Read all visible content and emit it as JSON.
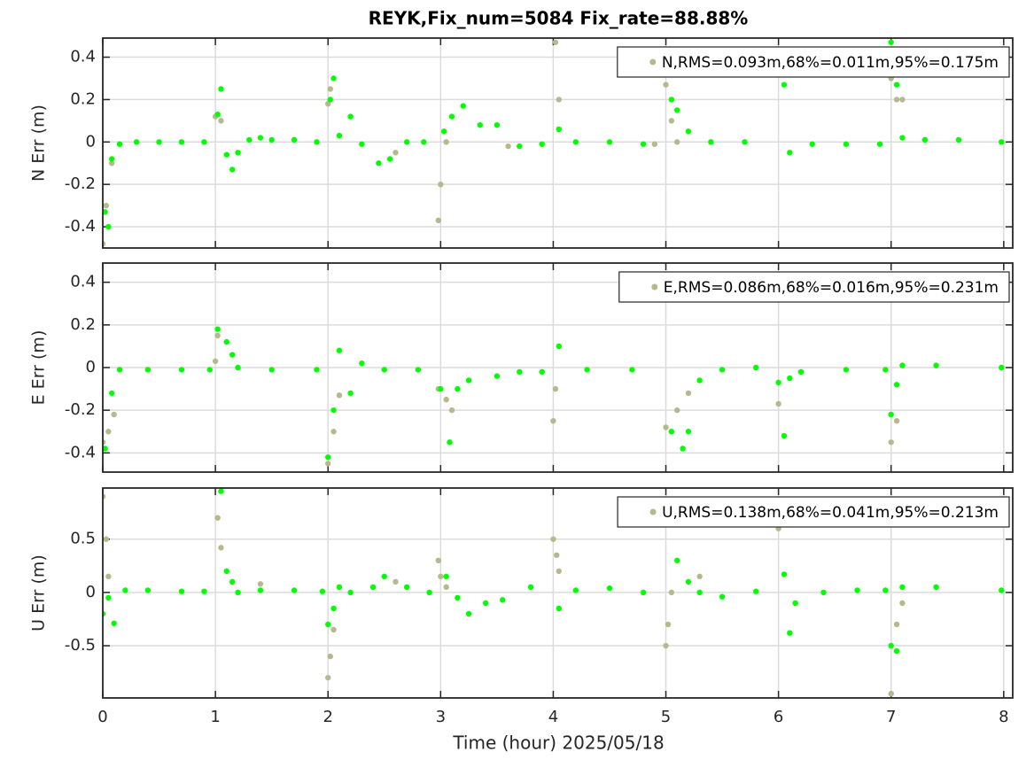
{
  "chart_data": [
    {
      "type": "scatter",
      "title": "REYK,Fix_num=5084 Fix_rate=88.88%",
      "ylabel": "N Err (m)",
      "xlim": [
        0,
        8.08
      ],
      "xticks": [
        0,
        1,
        2,
        3,
        4,
        5,
        6,
        7,
        8
      ],
      "ylim": [
        -0.5,
        0.49
      ],
      "yticks": [
        -0.4,
        -0.2,
        0,
        0.2,
        0.4
      ],
      "grid": true,
      "legend": "upper right",
      "series": [
        {
          "name": "N,RMS=0.093m,68%=0.011m,95%=0.175m",
          "color": "#b8b88e",
          "x": [
            0.0,
            0.03,
            0.08,
            1.0,
            1.05,
            2.0,
            2.02,
            2.6,
            2.98,
            3.0,
            3.05,
            3.6,
            4.02,
            4.05,
            4.9,
            5.0,
            5.05,
            5.1,
            7.0,
            7.05,
            7.1
          ],
          "values": [
            -0.48,
            -0.3,
            -0.1,
            0.12,
            0.1,
            0.18,
            0.25,
            -0.05,
            -0.37,
            -0.2,
            0,
            -0.02,
            0.47,
            0.2,
            -0.01,
            0.27,
            0.1,
            0,
            0.3,
            0.2,
            0.2
          ]
        },
        {
          "color": "#00ff00",
          "x": [
            0.02,
            0.05,
            0.08,
            0.15,
            0.3,
            0.5,
            0.7,
            0.9,
            1.02,
            1.05,
            1.1,
            1.15,
            1.2,
            1.3,
            1.4,
            1.5,
            1.7,
            1.9,
            2.02,
            2.05,
            2.1,
            2.2,
            2.3,
            2.45,
            2.55,
            2.7,
            2.85,
            3.03,
            3.1,
            3.2,
            3.35,
            3.5,
            3.7,
            3.9,
            4.05,
            4.2,
            4.5,
            4.8,
            5.05,
            5.1,
            5.2,
            5.4,
            5.7,
            6.05,
            6.1,
            6.3,
            6.6,
            6.9,
            7.0,
            7.05,
            7.1,
            7.3,
            7.6,
            7.98
          ],
          "values": [
            -0.33,
            -0.4,
            -0.08,
            -0.01,
            0,
            0,
            0,
            0,
            0.13,
            0.25,
            -0.06,
            -0.13,
            -0.05,
            0.01,
            0.02,
            0.01,
            0.01,
            0,
            0.2,
            0.3,
            0.03,
            0.12,
            -0.01,
            -0.1,
            -0.08,
            0,
            0,
            0.05,
            0.12,
            0.17,
            0.08,
            0.08,
            -0.02,
            -0.01,
            0.06,
            0,
            0,
            -0.01,
            0.2,
            0.15,
            0.05,
            0,
            0,
            0.27,
            -0.05,
            -0.01,
            -0.01,
            -0.01,
            0.47,
            0.27,
            0.02,
            0.01,
            0.01,
            0
          ]
        }
      ]
    },
    {
      "type": "scatter",
      "ylabel": "E Err (m)",
      "xlim": [
        0,
        8.08
      ],
      "xticks": [
        0,
        1,
        2,
        3,
        4,
        5,
        6,
        7,
        8
      ],
      "ylim": [
        -0.49,
        0.49
      ],
      "yticks": [
        -0.4,
        -0.2,
        0,
        0.2,
        0.4
      ],
      "grid": true,
      "legend": "upper right",
      "series": [
        {
          "name": "E,RMS=0.086m,68%=0.016m,95%=0.231m",
          "color": "#b8b88e",
          "x": [
            0.0,
            0.05,
            0.1,
            1.0,
            1.02,
            2.0,
            2.05,
            2.1,
            2.98,
            3.05,
            3.1,
            4.0,
            4.02,
            5.0,
            5.1,
            5.2,
            6.0,
            7.0,
            7.05
          ],
          "values": [
            -0.35,
            -0.3,
            -0.22,
            0.03,
            0.15,
            -0.45,
            -0.3,
            -0.13,
            -0.1,
            -0.15,
            -0.2,
            -0.25,
            -0.1,
            -0.28,
            -0.2,
            -0.12,
            -0.17,
            -0.35,
            -0.25
          ]
        },
        {
          "color": "#00ff00",
          "x": [
            0.02,
            0.08,
            0.15,
            0.4,
            0.7,
            0.95,
            1.02,
            1.1,
            1.15,
            1.2,
            1.5,
            1.9,
            2.0,
            2.05,
            2.1,
            2.2,
            2.3,
            2.5,
            2.8,
            3.0,
            3.08,
            3.15,
            3.25,
            3.5,
            3.7,
            3.9,
            4.05,
            4.3,
            4.7,
            5.05,
            5.15,
            5.2,
            5.3,
            5.5,
            5.8,
            6.0,
            6.05,
            6.1,
            6.2,
            6.6,
            6.95,
            7.0,
            7.05,
            7.1,
            7.4,
            7.98
          ],
          "values": [
            -0.38,
            -0.12,
            -0.01,
            -0.01,
            -0.01,
            -0.01,
            0.18,
            0.12,
            0.06,
            0,
            -0.01,
            -0.01,
            -0.42,
            -0.2,
            0.08,
            -0.12,
            0.02,
            -0.01,
            -0.01,
            -0.1,
            -0.35,
            -0.1,
            -0.06,
            -0.04,
            -0.02,
            -0.02,
            0.1,
            -0.01,
            -0.01,
            -0.3,
            -0.38,
            -0.3,
            -0.06,
            -0.01,
            0,
            -0.07,
            -0.32,
            -0.05,
            -0.02,
            -0.01,
            -0.01,
            -0.22,
            -0.08,
            0.01,
            0.01,
            0
          ]
        }
      ]
    },
    {
      "type": "scatter",
      "ylabel": "U Err (m)",
      "xlabel": "Time (hour)  2025/05/18",
      "xlim": [
        0,
        8.08
      ],
      "xticks": [
        0,
        1,
        2,
        3,
        4,
        5,
        6,
        7,
        8
      ],
      "ylim": [
        -0.99,
        0.98
      ],
      "yticks": [
        -0.5,
        0,
        0.5
      ],
      "grid": true,
      "legend": "upper right",
      "series": [
        {
          "name": "U,RMS=0.138m,68%=0.041m,95%=0.213m",
          "color": "#b8b88e",
          "x": [
            0.0,
            0.03,
            0.05,
            1.02,
            1.05,
            1.4,
            2.0,
            2.02,
            2.05,
            2.6,
            2.98,
            3.0,
            3.05,
            4.0,
            4.03,
            4.05,
            5.0,
            5.02,
            5.05,
            5.3,
            6.0,
            7.0,
            7.05,
            7.1
          ],
          "values": [
            0.9,
            0.5,
            0.15,
            0.7,
            0.42,
            0.08,
            -0.8,
            -0.6,
            -0.35,
            0.1,
            0.3,
            0.15,
            0.05,
            0.5,
            0.35,
            0.2,
            -0.5,
            -0.3,
            0,
            0.15,
            0.6,
            -0.95,
            -0.3,
            -0.1
          ]
        },
        {
          "color": "#00ff00",
          "x": [
            0.0,
            0.05,
            0.1,
            0.2,
            0.4,
            0.7,
            0.9,
            1.05,
            1.1,
            1.15,
            1.2,
            1.4,
            1.7,
            1.95,
            2.0,
            2.05,
            2.1,
            2.2,
            2.4,
            2.5,
            2.7,
            2.9,
            3.05,
            3.15,
            3.25,
            3.4,
            3.55,
            3.8,
            4.05,
            4.2,
            4.5,
            4.8,
            5.1,
            5.2,
            5.3,
            5.5,
            5.8,
            6.05,
            6.1,
            6.15,
            6.4,
            6.7,
            6.95,
            7.0,
            7.05,
            7.1,
            7.4,
            7.98
          ],
          "values": [
            -0.2,
            -0.05,
            -0.29,
            0.02,
            0.02,
            0.01,
            0.01,
            0.95,
            0.2,
            0.1,
            0,
            0.02,
            0.02,
            0.01,
            -0.3,
            -0.15,
            0.05,
            0,
            0.05,
            0.15,
            0.05,
            0,
            0.15,
            -0.05,
            -0.2,
            -0.1,
            -0.07,
            0.05,
            -0.15,
            0.02,
            0.04,
            0,
            0.3,
            0.1,
            0,
            -0.04,
            0.01,
            0.17,
            -0.38,
            -0.1,
            0,
            0.02,
            0.02,
            -0.5,
            -0.55,
            0.05,
            0.05,
            0.02
          ]
        }
      ]
    }
  ]
}
